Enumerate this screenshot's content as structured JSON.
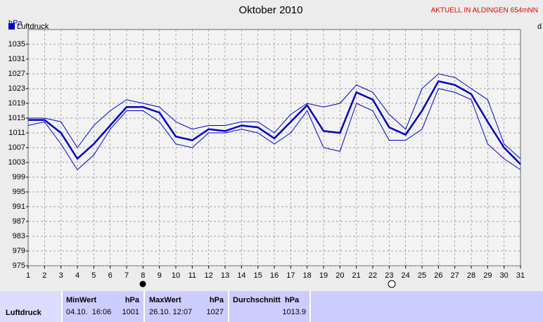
{
  "chart_data": {
    "type": "line",
    "title": "Oktober 2010",
    "note": "AKTUELL IN ALDINGEN 654mNN",
    "y_label": "hPa",
    "cut_label": "d",
    "categories": [
      "1",
      "2",
      "3",
      "4",
      "5",
      "6",
      "7",
      "8",
      "9",
      "10",
      "11",
      "12",
      "13",
      "14",
      "15",
      "16",
      "17",
      "18",
      "19",
      "20",
      "21",
      "22",
      "23",
      "24",
      "25",
      "26",
      "27",
      "28",
      "29",
      "30",
      "31"
    ],
    "series": [
      {
        "name": "Luftdruck",
        "color": "#0000cc",
        "values": [
          1014.5,
          1014.5,
          1011,
          1004,
          1008,
          1013,
          1018,
          1018,
          1016.5,
          1010,
          1009,
          1012,
          1011.5,
          1013,
          1012.5,
          1009.5,
          1014,
          1018.5,
          1011.5,
          1011,
          1022,
          1020,
          1012.5,
          1010.5,
          1017,
          1025,
          1024,
          1021.5,
          1014,
          1007,
          1002.5
        ]
      },
      {
        "color": "#0000cc",
        "values": [
          1015,
          1015,
          1014,
          1007,
          1013,
          1017,
          1020,
          1019,
          1018,
          1014,
          1012,
          1013,
          1013,
          1014,
          1014,
          1011,
          1016,
          1019,
          1018,
          1019,
          1024,
          1022,
          1016,
          1012,
          1023,
          1027,
          1026,
          1023,
          1020,
          1008,
          1004
        ]
      },
      {
        "color": "#0000cc",
        "values": [
          1013,
          1014,
          1008,
          1001,
          1005,
          1012,
          1017,
          1017,
          1014,
          1008,
          1007,
          1011,
          1011,
          1012,
          1011,
          1008,
          1011,
          1017,
          1007,
          1006,
          1019,
          1017,
          1009,
          1009,
          1012,
          1023,
          1022,
          1020,
          1008,
          1004,
          1001
        ]
      }
    ],
    "ylim": [
      975,
      1039
    ],
    "yticks": [
      975,
      979,
      983,
      987,
      991,
      995,
      999,
      1003,
      1007,
      1011,
      1015,
      1019,
      1023,
      1027,
      1031,
      1035
    ],
    "grid": true
  },
  "table": {
    "row_label": "Luftdruck",
    "columns": [
      {
        "title": "MinWert",
        "unit": "hPa",
        "time": "04.10.  16:06",
        "value": 1001
      },
      {
        "title": "MaxWert",
        "unit": "hPa",
        "time": "26.10. 12:07",
        "value": 1027
      },
      {
        "title": "Durchschnitt  hPa",
        "value": 1013.9
      }
    ]
  }
}
